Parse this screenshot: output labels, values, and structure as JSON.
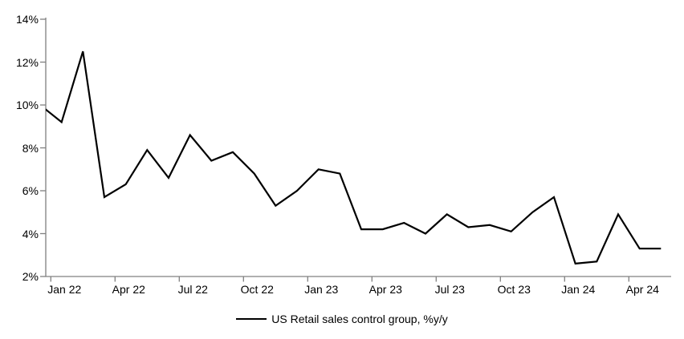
{
  "chart_data": {
    "type": "line",
    "categories": [
      "Jan 22",
      "Feb 22",
      "Mar 22",
      "Apr 22",
      "May 22",
      "Jun 22",
      "Jul 22",
      "Aug 22",
      "Sep 22",
      "Oct 22",
      "Nov 22",
      "Dec 22",
      "Jan 23",
      "Feb 23",
      "Mar 23",
      "Apr 23",
      "May 23",
      "Jun 23",
      "Jul 23",
      "Aug 23",
      "Sep 23",
      "Oct 23",
      "Nov 23",
      "Dec 23",
      "Jan 24",
      "Feb 24",
      "Mar 24",
      "Apr 24",
      "May 24",
      "Jun 24"
    ],
    "series": [
      {
        "name": "US Retail sales control group, %y/y",
        "color": "#000000",
        "values": [
          10.0,
          9.2,
          12.5,
          5.7,
          6.3,
          7.9,
          6.6,
          8.6,
          7.4,
          7.8,
          6.8,
          5.3,
          6.0,
          7.0,
          6.8,
          4.2,
          4.2,
          4.5,
          4.0,
          4.9,
          4.3,
          4.4,
          4.1,
          5.0,
          5.7,
          2.6,
          2.7,
          4.9,
          3.3,
          3.3
        ]
      }
    ],
    "title": "",
    "xlabel": "",
    "ylabel": "",
    "ylim": [
      2,
      14
    ],
    "y_tick_labels": [
      "2%",
      "4%",
      "6%",
      "8%",
      "10%",
      "12%",
      "14%"
    ],
    "y_tick_values": [
      2,
      4,
      6,
      8,
      10,
      12,
      14
    ],
    "x_tick_labels": [
      "Jan 22",
      "Apr 22",
      "Jul 22",
      "Oct 22",
      "Jan 23",
      "Apr 23",
      "Jul 23",
      "Oct 23",
      "Jan 24",
      "Apr 24"
    ],
    "x_tick_every": 3,
    "grid": false,
    "legend": {
      "label": "US Retail sales control group, %y/y",
      "position": "bottom-center"
    },
    "colors": {
      "line": "#000000",
      "axis": "#808080",
      "text": "#000000",
      "background": "#ffffff"
    }
  }
}
